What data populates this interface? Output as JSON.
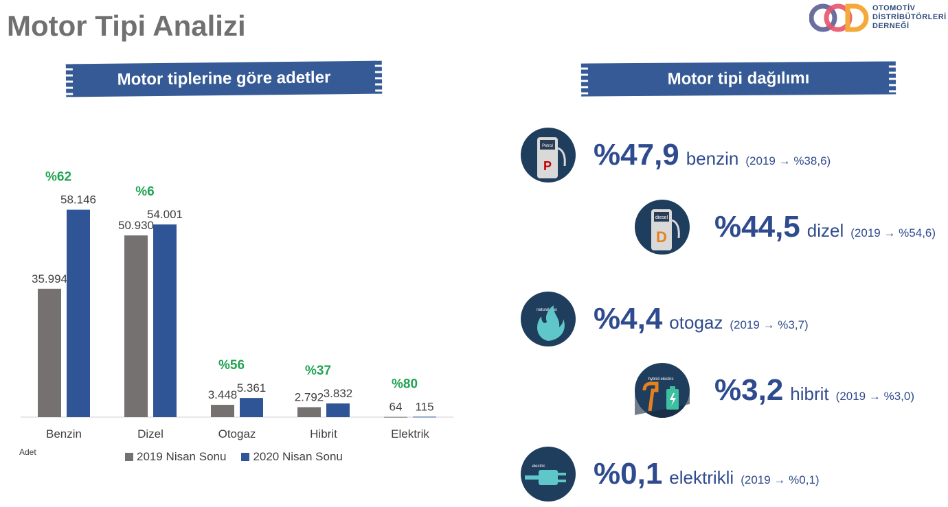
{
  "page": {
    "title": "Motor Tipi Analizi"
  },
  "logo": {
    "line1": "OTOMOTİV",
    "line2": "DİSTRİBÜTÖRLERİ",
    "line3": "DERNEĞİ"
  },
  "left_banner": "Motor tiplerine göre adetler",
  "right_banner": "Motor tipi dağılımı",
  "colors": {
    "series_2019": "#757171",
    "series_2020": "#2f5597",
    "growth": "#21a453",
    "accent": "#2f4b8f"
  },
  "chart_data": {
    "type": "bar",
    "categories": [
      "Benzin",
      "Dizel",
      "Otogaz",
      "Hibrit",
      "Elektrik"
    ],
    "series": [
      {
        "name": "2019 Nisan Sonu",
        "values": [
          35994,
          50930,
          3448,
          2792,
          64
        ],
        "labels": [
          "35.994",
          "50.930",
          "3.448",
          "2.792",
          "64"
        ]
      },
      {
        "name": "2020 Nisan Sonu",
        "values": [
          58146,
          54001,
          5361,
          3832,
          115
        ],
        "labels": [
          "58.146",
          "54.001",
          "5.361",
          "3.832",
          "115"
        ]
      }
    ],
    "growth_labels": [
      "%62",
      "%6",
      "%56",
      "%37",
      "%80"
    ],
    "ylabel": "Adet",
    "ylim": [
      0,
      65000
    ],
    "grid": false,
    "legend": "bottom"
  },
  "stats": [
    {
      "pct": "%47,9",
      "label": "benzin",
      "comparison": "(2019 → %38,6)",
      "icon": "petrol-pump-icon",
      "icon_text": "Petrol",
      "icon_letter": "P"
    },
    {
      "pct": "%44,5",
      "label": "dizel",
      "comparison": "(2019 → %54,6)",
      "icon": "diesel-pump-icon",
      "icon_text": "diesel",
      "icon_letter": "D"
    },
    {
      "pct": "%4,4",
      "label": "otogaz",
      "comparison": "(2019 → %3,7)",
      "icon": "natural-gas-icon",
      "icon_text": "natural gas"
    },
    {
      "pct": "%3,2",
      "label": "hibrit",
      "comparison": "(2019 → %3,0)",
      "icon": "hybrid-electric-icon",
      "icon_text": "hybrid electric"
    },
    {
      "pct": "%0,1",
      "label": "elektrikli",
      "comparison": "(2019 → %0,1)",
      "icon": "electric-plug-icon",
      "icon_text": "electric"
    }
  ]
}
